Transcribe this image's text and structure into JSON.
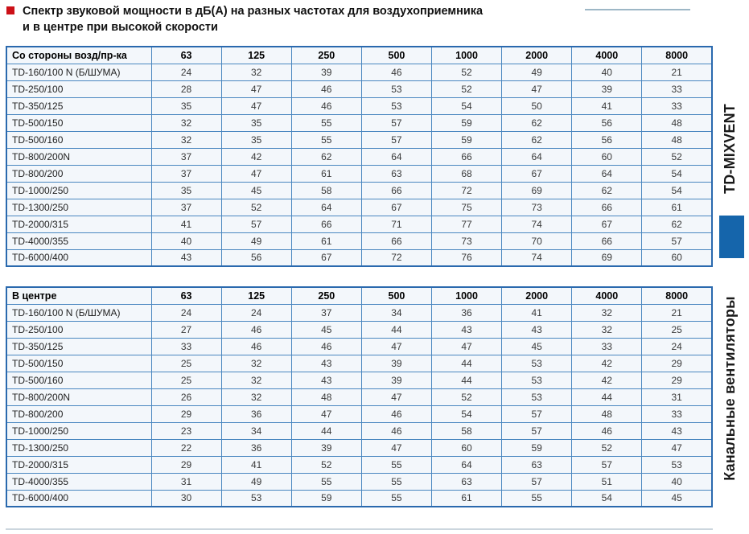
{
  "title": {
    "line1": "Спектр звуковой мощности в дБ(А) на разных частотах для воздухоприемника",
    "line2": "и в центре при высокой скорости"
  },
  "tables": [
    {
      "header": "Со стороны возд/пр-ка",
      "columns": [
        "63",
        "125",
        "250",
        "500",
        "1000",
        "2000",
        "4000",
        "8000"
      ],
      "rows": [
        {
          "model": "TD-160/100 N (Б/ШУМА)",
          "values": [
            "24",
            "32",
            "39",
            "46",
            "52",
            "49",
            "40",
            "21"
          ]
        },
        {
          "model": "TD-250/100",
          "values": [
            "28",
            "47",
            "46",
            "53",
            "52",
            "47",
            "39",
            "33"
          ]
        },
        {
          "model": "TD-350/125",
          "values": [
            "35",
            "47",
            "46",
            "53",
            "54",
            "50",
            "41",
            "33"
          ]
        },
        {
          "model": "TD-500/150",
          "values": [
            "32",
            "35",
            "55",
            "57",
            "59",
            "62",
            "56",
            "48"
          ]
        },
        {
          "model": "TD-500/160",
          "values": [
            "32",
            "35",
            "55",
            "57",
            "59",
            "62",
            "56",
            "48"
          ]
        },
        {
          "model": "TD-800/200N",
          "values": [
            "37",
            "42",
            "62",
            "64",
            "66",
            "64",
            "60",
            "52"
          ]
        },
        {
          "model": "TD-800/200",
          "values": [
            "37",
            "47",
            "61",
            "63",
            "68",
            "67",
            "64",
            "54"
          ]
        },
        {
          "model": "TD-1000/250",
          "values": [
            "35",
            "45",
            "58",
            "66",
            "72",
            "69",
            "62",
            "54"
          ]
        },
        {
          "model": "TD-1300/250",
          "values": [
            "37",
            "52",
            "64",
            "67",
            "75",
            "73",
            "66",
            "61"
          ]
        },
        {
          "model": "TD-2000/315",
          "values": [
            "41",
            "57",
            "66",
            "71",
            "77",
            "74",
            "67",
            "62"
          ]
        },
        {
          "model": "TD-4000/355",
          "values": [
            "40",
            "49",
            "61",
            "66",
            "73",
            "70",
            "66",
            "57"
          ]
        },
        {
          "model": "TD-6000/400",
          "values": [
            "43",
            "56",
            "67",
            "72",
            "76",
            "74",
            "69",
            "60"
          ]
        }
      ]
    },
    {
      "header": "В центре",
      "columns": [
        "63",
        "125",
        "250",
        "500",
        "1000",
        "2000",
        "4000",
        "8000"
      ],
      "rows": [
        {
          "model": "TD-160/100 N (Б/ШУМА)",
          "values": [
            "24",
            "24",
            "37",
            "34",
            "36",
            "41",
            "32",
            "21"
          ]
        },
        {
          "model": "TD-250/100",
          "values": [
            "27",
            "46",
            "45",
            "44",
            "43",
            "43",
            "32",
            "25"
          ]
        },
        {
          "model": "TD-350/125",
          "values": [
            "33",
            "46",
            "46",
            "47",
            "47",
            "45",
            "33",
            "24"
          ]
        },
        {
          "model": "TD-500/150",
          "values": [
            "25",
            "32",
            "43",
            "39",
            "44",
            "53",
            "42",
            "29"
          ]
        },
        {
          "model": "TD-500/160",
          "values": [
            "25",
            "32",
            "43",
            "39",
            "44",
            "53",
            "42",
            "29"
          ]
        },
        {
          "model": "TD-800/200N",
          "values": [
            "26",
            "32",
            "48",
            "47",
            "52",
            "53",
            "44",
            "31"
          ]
        },
        {
          "model": "TD-800/200",
          "values": [
            "29",
            "36",
            "47",
            "46",
            "54",
            "57",
            "48",
            "33"
          ]
        },
        {
          "model": "TD-1000/250",
          "values": [
            "23",
            "34",
            "44",
            "46",
            "58",
            "57",
            "46",
            "43"
          ]
        },
        {
          "model": "TD-1300/250",
          "values": [
            "22",
            "36",
            "39",
            "47",
            "60",
            "59",
            "52",
            "47"
          ]
        },
        {
          "model": "TD-2000/315",
          "values": [
            "29",
            "41",
            "52",
            "55",
            "64",
            "63",
            "57",
            "53"
          ]
        },
        {
          "model": "TD-4000/355",
          "values": [
            "31",
            "49",
            "55",
            "55",
            "63",
            "57",
            "51",
            "40"
          ]
        },
        {
          "model": "TD-6000/400",
          "values": [
            "30",
            "53",
            "59",
            "55",
            "61",
            "55",
            "54",
            "45"
          ]
        }
      ]
    }
  ],
  "sidebar": {
    "series_label": "TD-MIXVENT",
    "category_label": "Канальные вентиляторы",
    "accent_color": "#1565ab"
  },
  "colors": {
    "bullet_red": "#cc1017",
    "table_border_inner": "#4a87c0",
    "table_border_outer": "#2a69ae",
    "cell_background": "#f3f7fb",
    "title_rule": "#9db7c6"
  }
}
